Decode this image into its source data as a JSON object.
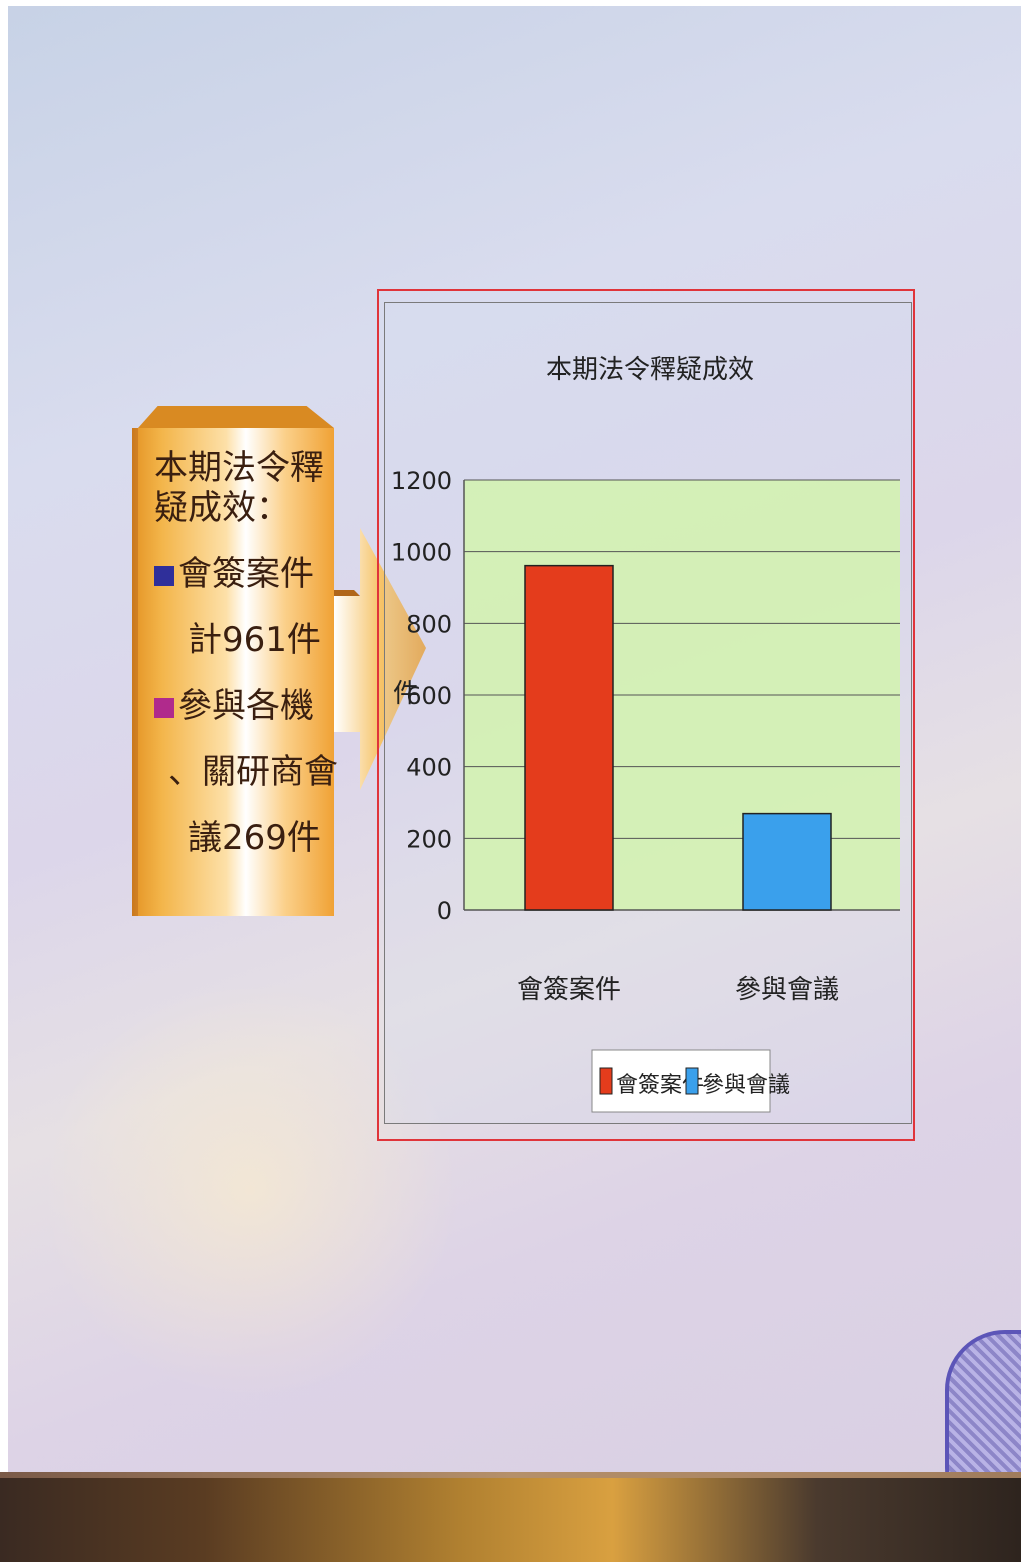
{
  "info_box": {
    "title": [
      "本期法令釋",
      "疑成效："
    ],
    "item1_label": "會簽案件",
    "item1_detail": "計961件",
    "item2_label": [
      "參與各機",
      "、關研商會",
      "議269件"
    ]
  },
  "colors": {
    "plot_bg": "#d2f3ae",
    "bar1": "#e43c1c",
    "bar2": "#3aa0ec",
    "legend_square1": "#2f2f9a",
    "legend_square2": "#b02a8c",
    "info_orange": "#f0a235",
    "frame_red": "#e0343a"
  },
  "chart_data": {
    "type": "bar",
    "title": "本期法令釋疑成效",
    "ylabel": "件",
    "xlabel": "",
    "categories": [
      "會簽案件",
      "參與會議"
    ],
    "values": [
      961,
      269
    ],
    "ylim": [
      0,
      1200
    ],
    "yticks": [
      0,
      200,
      400,
      600,
      800,
      1000,
      1200
    ],
    "legend": [
      "會簽案件",
      "參與會議"
    ],
    "legend_position": "bottom",
    "grid": true
  }
}
